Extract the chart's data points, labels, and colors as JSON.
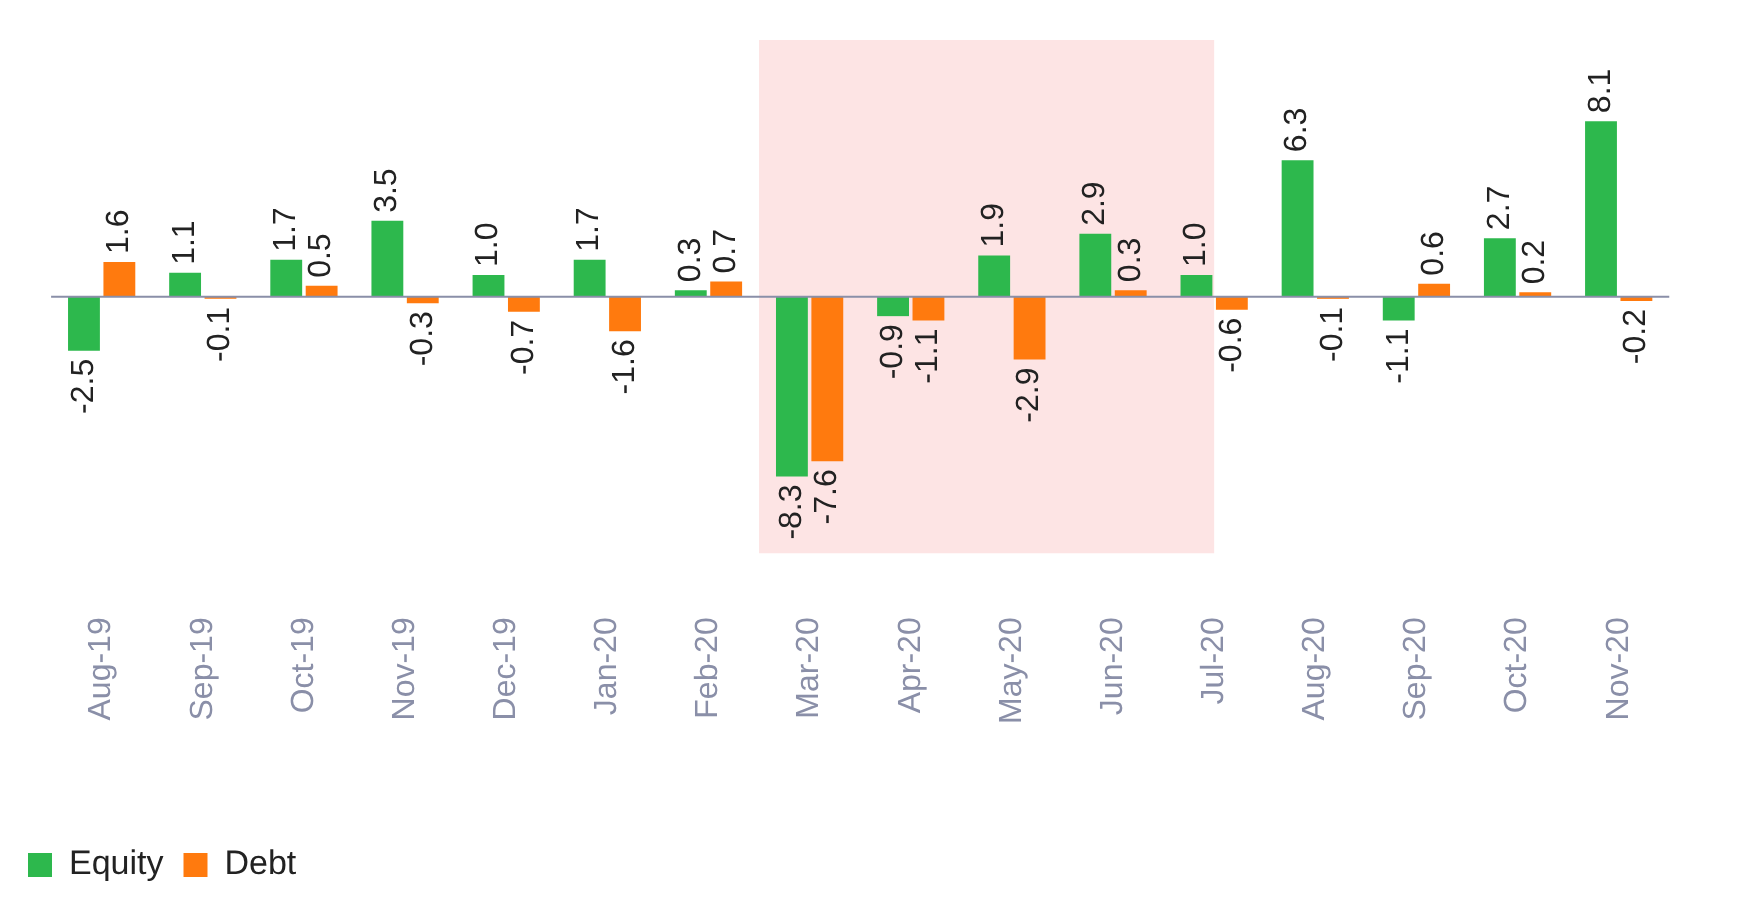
{
  "chart_data": {
    "type": "bar",
    "categories": [
      "Aug-19",
      "Sep-19",
      "Oct-19",
      "Nov-19",
      "Dec-19",
      "Jan-20",
      "Feb-20",
      "Mar-20",
      "Apr-20",
      "May-20",
      "Jun-20",
      "Jul-20",
      "Aug-20",
      "Sep-20",
      "Oct-20",
      "Nov-20"
    ],
    "series": [
      {
        "name": "Equity",
        "color": "#2db84d",
        "values": [
          -2.5,
          1.1,
          1.7,
          3.5,
          1.0,
          1.7,
          0.3,
          -8.3,
          -0.9,
          1.9,
          2.9,
          1.0,
          6.3,
          -1.1,
          2.7,
          8.1
        ],
        "value_labels": [
          "-2.5",
          "1.1",
          "1.7",
          "3.5",
          "1.0",
          "1.7",
          "0.3",
          "-8.3",
          "-0.9",
          "1.9",
          "2.9",
          "1.0",
          "6.3",
          "-1.1",
          "2.7",
          "8.1"
        ]
      },
      {
        "name": "Debt",
        "color": "#ff7a0e",
        "values": [
          1.6,
          -0.1,
          0.5,
          -0.3,
          -0.7,
          -1.6,
          0.7,
          -7.6,
          -1.1,
          -2.9,
          0.3,
          -0.6,
          -0.1,
          0.6,
          0.2,
          -0.2
        ]
      }
    ],
    "data_labels": true,
    "tick_labels": "x",
    "grid": false,
    "legend": "bottom left",
    "bands": [
      {
        "axis": "x",
        "from": "Mar-20",
        "to": "Jul-20",
        "color": "#fde4e4"
      }
    ]
  }
}
